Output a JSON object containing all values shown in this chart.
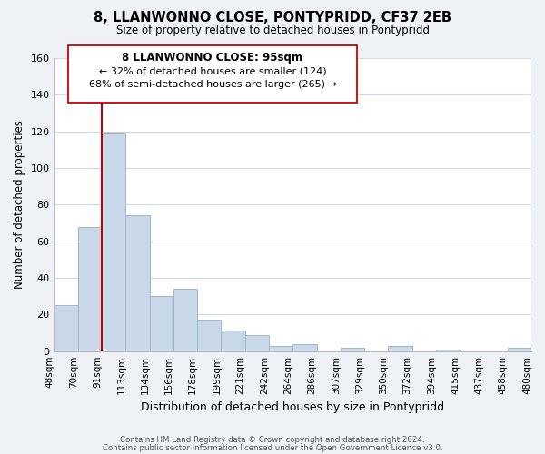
{
  "title": "8, LLANWONNO CLOSE, PONTYPRIDD, CF37 2EB",
  "subtitle": "Size of property relative to detached houses in Pontypridd",
  "xlabel": "Distribution of detached houses by size in Pontypridd",
  "ylabel": "Number of detached properties",
  "bin_labels": [
    "48sqm",
    "70sqm",
    "91sqm",
    "113sqm",
    "134sqm",
    "156sqm",
    "178sqm",
    "199sqm",
    "221sqm",
    "242sqm",
    "264sqm",
    "286sqm",
    "307sqm",
    "329sqm",
    "350sqm",
    "372sqm",
    "394sqm",
    "415sqm",
    "437sqm",
    "458sqm",
    "480sqm"
  ],
  "bar_values": [
    25,
    68,
    119,
    74,
    30,
    34,
    17,
    11,
    9,
    3,
    4,
    0,
    2,
    0,
    3,
    0,
    1,
    0,
    0,
    2
  ],
  "bar_color": "#c8d8e8",
  "bar_edge_color": "#a0b8cc",
  "ylim": [
    0,
    160
  ],
  "yticks": [
    0,
    20,
    40,
    60,
    80,
    100,
    120,
    140,
    160
  ],
  "vline_x": 2.0,
  "vline_color": "#cc0000",
  "annotation_title": "8 LLANWONNO CLOSE: 95sqm",
  "annotation_line1": "← 32% of detached houses are smaller (124)",
  "annotation_line2": "68% of semi-detached houses are larger (265) →",
  "footer1": "Contains HM Land Registry data © Crown copyright and database right 2024.",
  "footer2": "Contains public sector information licensed under the Open Government Licence v3.0.",
  "bg_color": "#eef2f7",
  "plot_bg_color": "#ffffff",
  "grid_color": "#d0d8e4"
}
